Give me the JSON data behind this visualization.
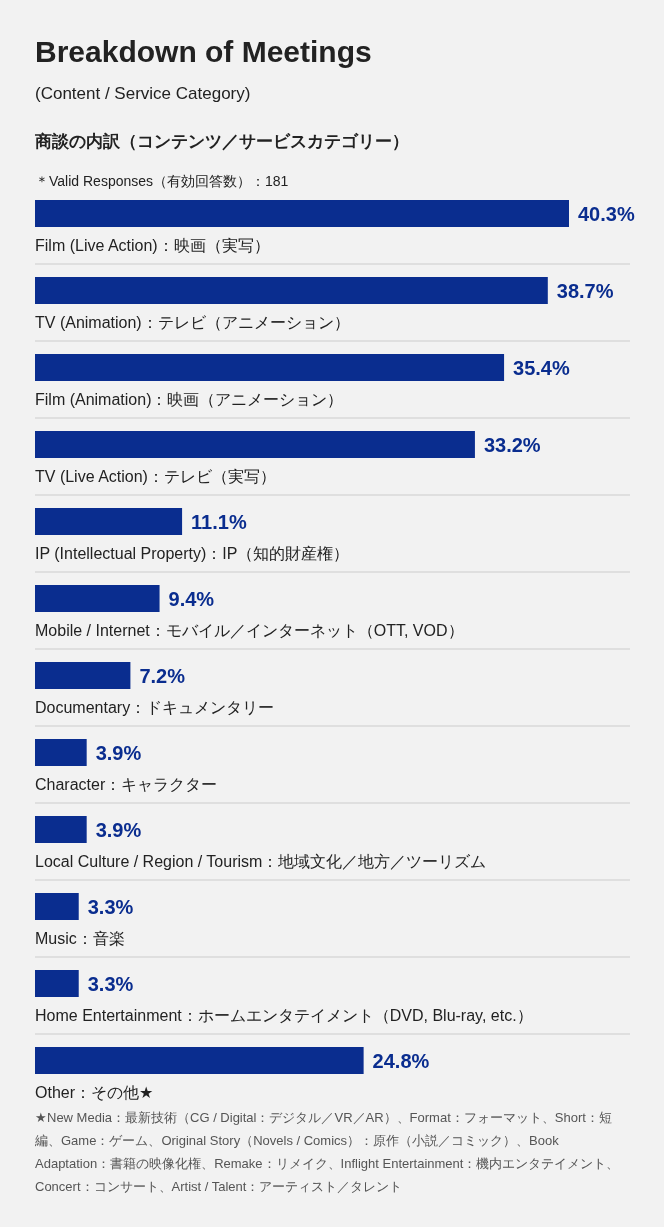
{
  "chart_data": {
    "type": "bar",
    "orientation": "horizontal",
    "title": "Breakdown of Meetings",
    "subtitle": "(Content / Service Category)",
    "categories": [
      "Film (Live Action)：映画（実写）",
      "TV (Animation)：テレビ（アニメーション）",
      "Film (Animation)：映画（アニメーション）",
      "TV (Live Action)：テレビ（実写）",
      "IP (Intellectual Property)：IP（知的財産権）",
      "Mobile / Internet：モバイル／インターネット（OTT, VOD）",
      "Documentary：ドキュメンタリー",
      "Character：キャラクター",
      "Local Culture / Region / Tourism：地域文化／地方／ツーリズム",
      "Music：音楽",
      "Home Entertainment：ホームエンタテイメント（DVD, Blu-ray, etc.）",
      "Other：その他★"
    ],
    "values": [
      40.3,
      38.7,
      35.4,
      33.2,
      11.1,
      9.4,
      7.2,
      3.9,
      3.9,
      3.3,
      3.3,
      24.8
    ],
    "value_labels": [
      "40.3%",
      "38.7%",
      "35.4%",
      "33.2%",
      "11.1%",
      "9.4%",
      "7.2%",
      "3.9%",
      "3.9%",
      "3.3%",
      "3.3%",
      "24.8%"
    ],
    "color": "#0a2d8f",
    "annotations": [
      "商談の内訳（コンテンツ／サービスカテゴリー）",
      "＊Valid Responses（有効回答数）：181",
      "★New Media：最新技術（CG / Digital：デジタル／VR／AR）、Format：フォーマット、Short：短編、Game：ゲーム、Original Story（Novels / Comics）：原作（小説／コミック）、Book Adaptation：書籍の映像化権、Remake：リメイク、Inflight Entertainment：機内エンタテイメント、Concert：コンサート、Artist / Talent：アーティスト／タレント"
    ]
  }
}
